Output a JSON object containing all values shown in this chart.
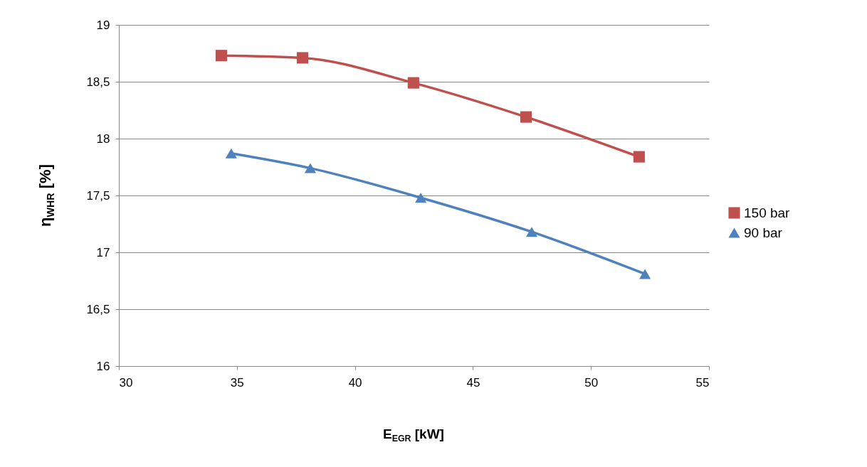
{
  "chart_data": {
    "type": "line",
    "xlabel": "E$_{EGR}$ [kW]",
    "ylabel": "η$_{WHR}$ [%]",
    "xlim": [
      30,
      55
    ],
    "xticks": [
      30,
      35,
      40,
      45,
      50,
      55
    ],
    "ylim": [
      16,
      19
    ],
    "yticks": [
      16,
      {
        "value": 16.5,
        "label": "16,5"
      },
      17,
      {
        "value": 17.5,
        "label": "17,5"
      },
      18,
      {
        "value": 18.5,
        "label": "18,5"
      },
      19
    ],
    "grid": "y",
    "legend": "right",
    "line_style": "solid",
    "series": [
      {
        "name": "150 bar",
        "color": "#c0504d",
        "marker": "square",
        "x": [
          34.34,
          37.78,
          42.48,
          47.25,
          52.04
        ],
        "values": [
          18.73,
          18.71,
          18.49,
          18.19,
          17.84
        ]
      },
      {
        "name": "90 bar",
        "color": "#4f81bd",
        "marker": "triangle",
        "x": [
          34.76,
          38.11,
          42.79,
          47.49,
          52.29
        ],
        "values": [
          17.87,
          17.74,
          17.48,
          17.18,
          16.81
        ]
      }
    ]
  }
}
